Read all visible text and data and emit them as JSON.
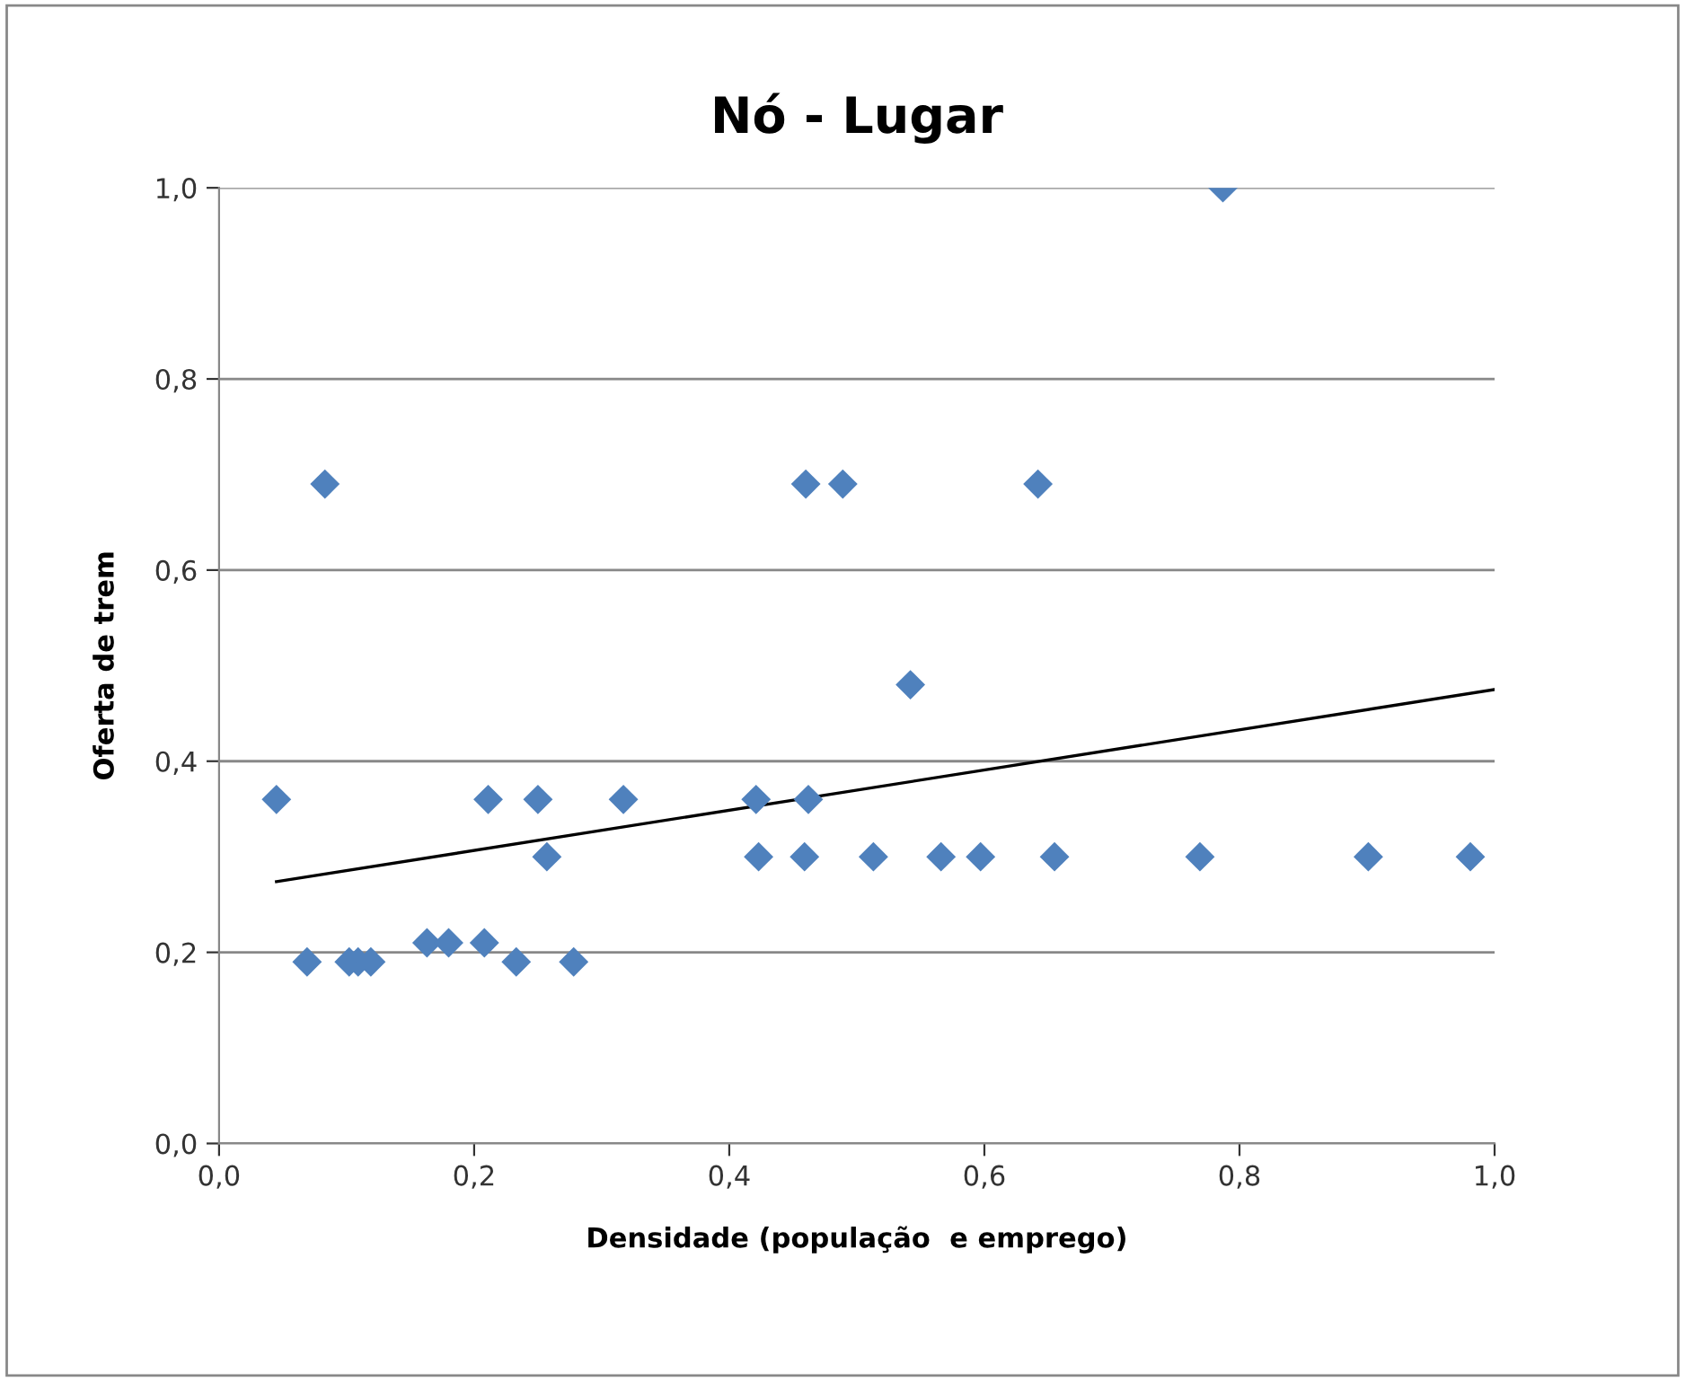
{
  "chart_data": {
    "type": "scatter",
    "title": "Nó - Lugar",
    "xlabel": "Densidade (população  e emprego)",
    "ylabel": "Oferta de trem",
    "xlim": [
      0,
      1
    ],
    "ylim": [
      0,
      1
    ],
    "xticks": [
      {
        "value": 0,
        "label": "0,0"
      },
      {
        "value": 0.2,
        "label": "0,2"
      },
      {
        "value": 0.4,
        "label": "0,4"
      },
      {
        "value": 0.6,
        "label": "0,6"
      },
      {
        "value": 0.8,
        "label": "0,8"
      },
      {
        "value": 1,
        "label": "1,0"
      }
    ],
    "yticks": [
      {
        "value": 0,
        "label": "0,0"
      },
      {
        "value": 0.2,
        "label": "0,2"
      },
      {
        "value": 0.4,
        "label": "0,4"
      },
      {
        "value": 0.6,
        "label": "0,6"
      },
      {
        "value": 0.8,
        "label": "0,8"
      },
      {
        "value": 1,
        "label": "1,0"
      }
    ],
    "grid": "y",
    "legend": false,
    "marker": "diamond",
    "series": [
      {
        "color": "#4f81bd",
        "x": [
          0.045,
          0.083,
          0.069,
          0.102,
          0.109,
          0.119,
          0.163,
          0.18,
          0.208,
          0.211,
          0.233,
          0.25,
          0.257,
          0.278,
          0.317,
          0.421,
          0.423,
          0.46,
          0.459,
          0.462,
          0.489,
          0.513,
          0.542,
          0.566,
          0.597,
          0.642,
          0.655,
          0.769,
          0.787,
          0.901,
          0.981
        ],
        "values": [
          0.36,
          0.69,
          0.19,
          0.19,
          0.19,
          0.19,
          0.21,
          0.21,
          0.21,
          0.36,
          0.19,
          0.36,
          0.3,
          0.19,
          0.36,
          0.36,
          0.3,
          0.69,
          0.3,
          0.36,
          0.69,
          0.3,
          0.48,
          0.3,
          0.3,
          0.69,
          0.3,
          0.3,
          1.0,
          0.3,
          0.3
        ]
      },
      {
        "type": "line",
        "color": "#000000",
        "x": [
          0.045,
          1.0
        ],
        "values": [
          0.274,
          0.475
        ],
        "marker": "none"
      }
    ]
  }
}
